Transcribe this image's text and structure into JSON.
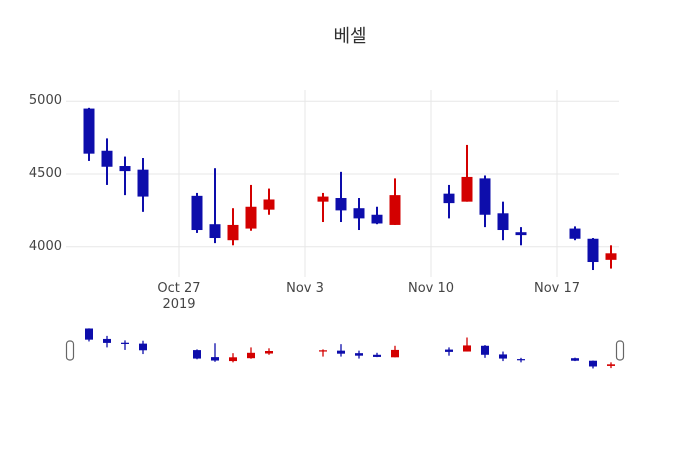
{
  "title": "베셀",
  "colors": {
    "increasing": "#d30000",
    "decreasing": "#0d0dab",
    "grid": "#e7e7e7",
    "tick_text": "#444444",
    "title_text": "#303030",
    "handle_border": "#666666",
    "background": "#ffffff"
  },
  "y_axis": {
    "ticks": [
      {
        "label": "5000",
        "value": 5000
      },
      {
        "label": "4500",
        "value": 4500
      },
      {
        "label": "4000",
        "value": 4000
      }
    ]
  },
  "x_axis": {
    "ticks": [
      {
        "label": "Oct 27",
        "sub": "2019",
        "day_offset": 5
      },
      {
        "label": "Nov 3",
        "day_offset": 12
      },
      {
        "label": "Nov 10",
        "day_offset": 19
      },
      {
        "label": "Nov 17",
        "day_offset": 26
      }
    ]
  },
  "rangeslider": {
    "visible": true
  },
  "chart_data": {
    "type": "candlestick",
    "title": "베셀",
    "ylabel": "",
    "yticks": [
      4000,
      4500,
      5000
    ],
    "ylim": [
      3790,
      5080
    ],
    "grid": true,
    "x_tick_labels": [
      "Oct 27 2019",
      "Nov 3",
      "Nov 10",
      "Nov 17"
    ],
    "increasing_color": "#d30000",
    "decreasing_color": "#0d0dab",
    "candles": [
      {
        "date": "Oct 22",
        "day_offset": 0,
        "open": 4950,
        "high": 4955,
        "low": 4590,
        "close": 4640
      },
      {
        "date": "Oct 23",
        "day_offset": 1,
        "open": 4660,
        "high": 4745,
        "low": 4425,
        "close": 4550
      },
      {
        "date": "Oct 24",
        "day_offset": 2,
        "open": 4555,
        "high": 4620,
        "low": 4355,
        "close": 4520
      },
      {
        "date": "Oct 25",
        "day_offset": 3,
        "open": 4530,
        "high": 4610,
        "low": 4240,
        "close": 4345
      },
      {
        "date": "Oct 28",
        "day_offset": 6,
        "open": 4350,
        "high": 4370,
        "low": 4095,
        "close": 4115
      },
      {
        "date": "Oct 29",
        "day_offset": 7,
        "open": 4155,
        "high": 4540,
        "low": 4025,
        "close": 4060
      },
      {
        "date": "Oct 30",
        "day_offset": 8,
        "open": 4045,
        "high": 4265,
        "low": 4010,
        "close": 4150
      },
      {
        "date": "Oct 31",
        "day_offset": 9,
        "open": 4125,
        "high": 4425,
        "low": 4110,
        "close": 4275
      },
      {
        "date": "Nov 1",
        "day_offset": 10,
        "open": 4255,
        "high": 4400,
        "low": 4220,
        "close": 4325
      },
      {
        "date": "Nov 4",
        "day_offset": 13,
        "open": 4310,
        "high": 4370,
        "low": 4170,
        "close": 4345
      },
      {
        "date": "Nov 5",
        "day_offset": 14,
        "open": 4335,
        "high": 4515,
        "low": 4170,
        "close": 4250
      },
      {
        "date": "Nov 6",
        "day_offset": 15,
        "open": 4265,
        "high": 4335,
        "low": 4115,
        "close": 4195
      },
      {
        "date": "Nov 7",
        "day_offset": 16,
        "open": 4220,
        "high": 4275,
        "low": 4155,
        "close": 4160
      },
      {
        "date": "Nov 8",
        "day_offset": 17,
        "open": 4150,
        "high": 4470,
        "low": 4150,
        "close": 4355
      },
      {
        "date": "Nov 11",
        "day_offset": 20,
        "open": 4365,
        "high": 4425,
        "low": 4195,
        "close": 4300
      },
      {
        "date": "Nov 12",
        "day_offset": 21,
        "open": 4310,
        "high": 4700,
        "low": 4310,
        "close": 4480
      },
      {
        "date": "Nov 13",
        "day_offset": 22,
        "open": 4470,
        "high": 4490,
        "low": 4135,
        "close": 4220
      },
      {
        "date": "Nov 14",
        "day_offset": 23,
        "open": 4230,
        "high": 4310,
        "low": 4045,
        "close": 4115
      },
      {
        "date": "Nov 15",
        "day_offset": 24,
        "open": 4100,
        "high": 4135,
        "low": 4010,
        "close": 4080
      },
      {
        "date": "Nov 18",
        "day_offset": 27,
        "open": 4125,
        "high": 4140,
        "low": 4045,
        "close": 4055
      },
      {
        "date": "Nov 19",
        "day_offset": 28,
        "open": 4055,
        "high": 4060,
        "low": 3840,
        "close": 3895
      },
      {
        "date": "Nov 20",
        "day_offset": 29,
        "open": 3910,
        "high": 4010,
        "low": 3850,
        "close": 3955
      }
    ]
  }
}
